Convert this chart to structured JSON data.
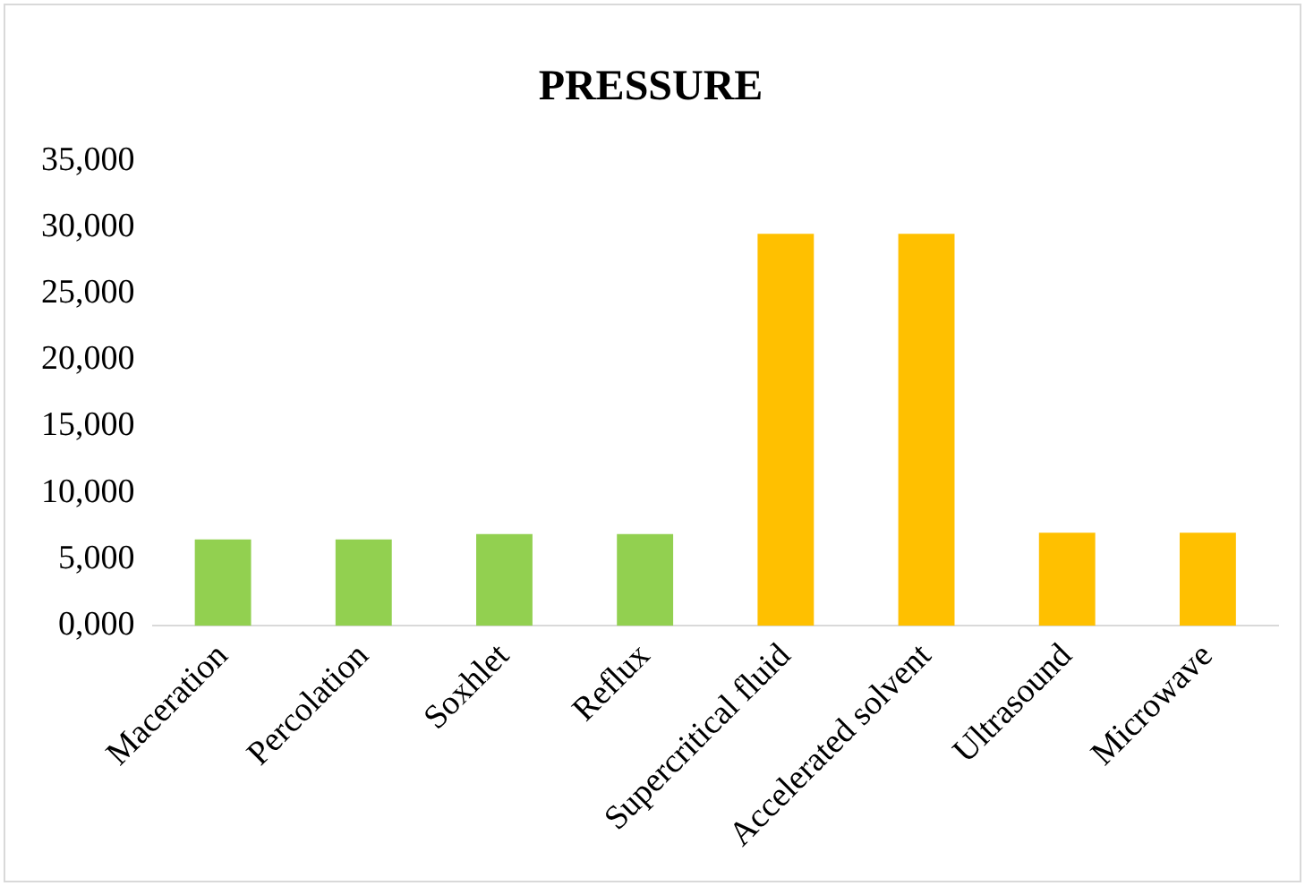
{
  "chart_data": {
    "type": "bar",
    "title": "PRESSURE",
    "categories": [
      "Maceration",
      "Percolation",
      "Soxhlet",
      "Reflux",
      "Supercritical fluid",
      "Accelerated solvent",
      "Ultrasound",
      "Microwave"
    ],
    "values": [
      6500,
      6500,
      6900,
      6900,
      29500,
      29500,
      7000,
      7000
    ],
    "colors": [
      "#92d050",
      "#92d050",
      "#92d050",
      "#92d050",
      "#ffc000",
      "#ffc000",
      "#ffc000",
      "#ffc000"
    ],
    "ylim": [
      0,
      35000
    ],
    "yticks": [
      {
        "value": 0,
        "label": "0,000"
      },
      {
        "value": 5000,
        "label": "5,000"
      },
      {
        "value": 10000,
        "label": "10,000"
      },
      {
        "value": 15000,
        "label": "15,000"
      },
      {
        "value": 20000,
        "label": "20,000"
      },
      {
        "value": 25000,
        "label": "25,000"
      },
      {
        "value": 30000,
        "label": "30,000"
      },
      {
        "value": 35000,
        "label": "35,000"
      }
    ],
    "grid": false,
    "legend": false
  }
}
